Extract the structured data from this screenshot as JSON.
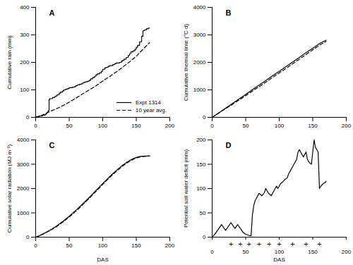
{
  "chart_data": [
    {
      "type": "line",
      "title": "A",
      "ylabel": "Cumulative rain (mm)",
      "xlim": [
        0,
        200
      ],
      "ylim": [
        0,
        400
      ],
      "xticks": [
        0,
        50,
        100,
        150,
        200
      ],
      "yticks": [
        0,
        100,
        200,
        300,
        400
      ],
      "legend": "lower right",
      "series": [
        {
          "name": "Expt 1314",
          "type": "step",
          "line_style": "solid",
          "x": [
            0,
            1,
            5,
            10,
            14,
            15,
            16,
            17,
            18,
            19,
            20,
            21,
            25,
            28,
            30,
            32,
            35,
            37,
            40,
            42,
            45,
            48,
            50,
            55,
            58,
            60,
            62,
            65,
            68,
            70,
            72,
            75,
            78,
            80,
            82,
            85,
            88,
            90,
            92,
            95,
            98,
            100,
            103,
            105,
            108,
            110,
            115,
            118,
            120,
            125,
            128,
            130,
            132,
            135,
            138,
            140,
            142,
            145,
            148,
            150,
            152,
            155,
            158,
            160,
            162,
            165,
            168,
            170
          ],
          "values": [
            0,
            2,
            5,
            8,
            10,
            12,
            15,
            18,
            20,
            25,
            65,
            68,
            72,
            75,
            78,
            82,
            88,
            92,
            96,
            100,
            103,
            105,
            108,
            110,
            112,
            115,
            118,
            120,
            122,
            125,
            128,
            130,
            132,
            135,
            140,
            145,
            150,
            155,
            158,
            162,
            168,
            175,
            180,
            182,
            185,
            188,
            192,
            195,
            198,
            200,
            205,
            208,
            212,
            218,
            225,
            232,
            238,
            242,
            248,
            255,
            262,
            275,
            295,
            315,
            318,
            322,
            325,
            325
          ]
        },
        {
          "name": "10 year avg.",
          "type": "line",
          "line_style": "dashed",
          "x": [
            0,
            10,
            20,
            30,
            40,
            50,
            60,
            70,
            80,
            90,
            100,
            110,
            120,
            130,
            140,
            150,
            160,
            170
          ],
          "values": [
            0,
            8,
            20,
            30,
            42,
            55,
            70,
            85,
            100,
            115,
            132,
            148,
            165,
            183,
            202,
            222,
            248,
            272
          ]
        }
      ]
    },
    {
      "type": "line",
      "title": "B",
      "ylabel": "Cumulative thermal time (°C d)",
      "xlim": [
        0,
        200
      ],
      "ylim": [
        0,
        4000
      ],
      "xticks": [
        0,
        50,
        100,
        150,
        200
      ],
      "yticks": [
        0,
        1000,
        2000,
        3000,
        4000
      ],
      "series": [
        {
          "type": "line",
          "line_style": "solid",
          "x": [
            0,
            10,
            20,
            30,
            40,
            50,
            60,
            70,
            80,
            90,
            100,
            110,
            120,
            130,
            140,
            150,
            160,
            170
          ],
          "values": [
            0,
            165,
            335,
            500,
            665,
            835,
            1005,
            1170,
            1340,
            1510,
            1675,
            1845,
            2010,
            2180,
            2350,
            2515,
            2685,
            2810
          ]
        },
        {
          "type": "line",
          "line_style": "dashed",
          "x": [
            0,
            10,
            20,
            30,
            40,
            50,
            60,
            70,
            80,
            90,
            100,
            110,
            120,
            130,
            140,
            150,
            160,
            170
          ],
          "values": [
            0,
            155,
            315,
            470,
            628,
            790,
            955,
            1115,
            1280,
            1450,
            1615,
            1780,
            1948,
            2115,
            2285,
            2455,
            2625,
            2762
          ]
        }
      ]
    },
    {
      "type": "line",
      "title": "C",
      "ylabel": "Cumulative solar radiation (MJ m⁻²)",
      "xlabel": "DAS",
      "xlim": [
        0,
        200
      ],
      "ylim": [
        0,
        4000
      ],
      "xticks": [
        0,
        50,
        100,
        150,
        200
      ],
      "yticks": [
        0,
        1000,
        2000,
        3000,
        4000
      ],
      "series": [
        {
          "type": "line",
          "line_style": "solid",
          "x": [
            0,
            5,
            10,
            15,
            20,
            25,
            30,
            35,
            40,
            45,
            50,
            55,
            60,
            65,
            70,
            75,
            80,
            85,
            90,
            95,
            100,
            105,
            110,
            115,
            120,
            125,
            130,
            135,
            140,
            145,
            150,
            155,
            160,
            165,
            170
          ],
          "values": [
            0,
            55,
            120,
            192,
            268,
            350,
            438,
            535,
            638,
            748,
            862,
            982,
            1105,
            1232,
            1365,
            1500,
            1638,
            1778,
            1920,
            2062,
            2205,
            2345,
            2480,
            2610,
            2735,
            2852,
            2962,
            3062,
            3150,
            3225,
            3278,
            3315,
            3330,
            3338,
            3340
          ]
        },
        {
          "type": "line",
          "line_style": "dashed",
          "x": [
            0,
            5,
            10,
            15,
            20,
            25,
            30,
            35,
            40,
            45,
            50,
            55,
            60,
            65,
            70,
            75,
            80,
            85,
            90,
            95,
            100,
            105,
            110,
            115,
            120,
            125,
            130,
            135,
            140,
            145,
            150,
            155,
            160,
            165,
            170
          ],
          "values": [
            0,
            52,
            112,
            180,
            252,
            330,
            415,
            508,
            608,
            715,
            828,
            945,
            1068,
            1195,
            1328,
            1462,
            1600,
            1740,
            1882,
            2025,
            2168,
            2308,
            2445,
            2575,
            2700,
            2818,
            2928,
            3030,
            3118,
            3195,
            3252,
            3292,
            3318,
            3332,
            3340
          ]
        }
      ]
    },
    {
      "type": "line",
      "title": "D",
      "ylabel": "Potential soil water deficit (mm)",
      "xlabel": "DAS",
      "xlim": [
        0,
        200
      ],
      "ylim": [
        0,
        200
      ],
      "xticks": [
        0,
        50,
        100,
        150,
        200
      ],
      "yticks": [
        0,
        50,
        100,
        150,
        200
      ],
      "series": [
        {
          "type": "line",
          "line_style": "solid",
          "x": [
            0,
            2,
            4,
            6,
            8,
            10,
            12,
            14,
            16,
            18,
            20,
            22,
            24,
            26,
            28,
            30,
            32,
            34,
            36,
            38,
            40,
            42,
            44,
            46,
            48,
            50,
            52,
            54,
            56,
            58,
            60,
            62,
            64,
            66,
            68,
            70,
            72,
            74,
            76,
            78,
            80,
            82,
            84,
            86,
            88,
            90,
            92,
            94,
            96,
            98,
            100,
            102,
            104,
            106,
            108,
            110,
            112,
            114,
            116,
            118,
            120,
            122,
            124,
            126,
            128,
            130,
            132,
            134,
            136,
            138,
            140,
            142,
            144,
            146,
            148,
            150,
            152,
            154,
            156,
            158,
            160,
            162,
            164,
            166,
            168,
            170
          ],
          "values": [
            0,
            3,
            6,
            10,
            14,
            18,
            22,
            26,
            22,
            18,
            14,
            18,
            22,
            26,
            30,
            26,
            22,
            18,
            22,
            26,
            22,
            18,
            14,
            10,
            8,
            6,
            5,
            4,
            3,
            3,
            45,
            65,
            75,
            80,
            85,
            90,
            88,
            85,
            88,
            92,
            100,
            95,
            90,
            88,
            85,
            90,
            95,
            100,
            105,
            100,
            105,
            110,
            112,
            115,
            118,
            120,
            122,
            130,
            135,
            140,
            145,
            150,
            155,
            160,
            175,
            180,
            175,
            170,
            165,
            170,
            175,
            160,
            155,
            152,
            150,
            175,
            200,
            185,
            180,
            175,
            100,
            105,
            108,
            110,
            112,
            115
          ]
        }
      ],
      "annotations": [
        {
          "text": "+",
          "x": 28
        },
        {
          "text": "+",
          "x": 42
        },
        {
          "text": "+",
          "x": 55
        },
        {
          "text": "+",
          "x": 70
        },
        {
          "text": "+",
          "x": 85
        },
        {
          "text": "+",
          "x": 100
        },
        {
          "text": "+",
          "x": 120
        },
        {
          "text": "+",
          "x": 140
        },
        {
          "text": "+",
          "x": 160
        }
      ]
    }
  ]
}
